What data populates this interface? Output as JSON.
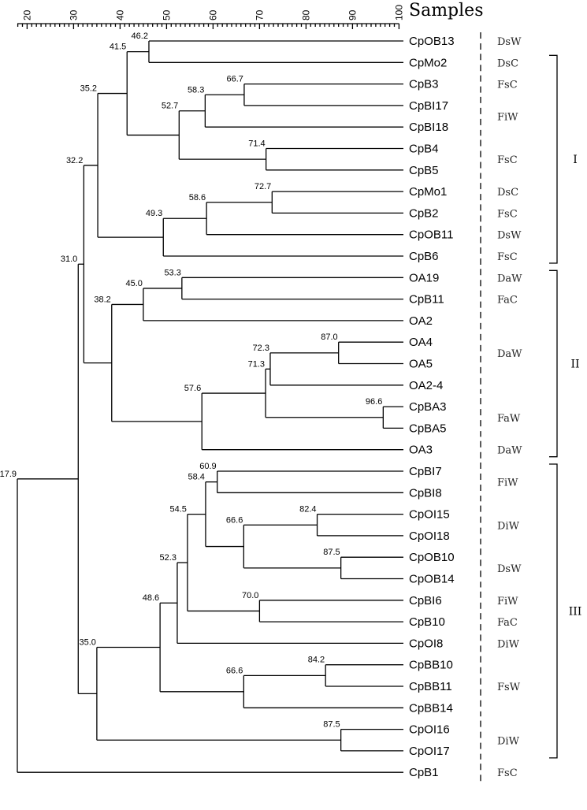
{
  "scale": {
    "title": "Samples",
    "ticks": [
      "20",
      "30",
      "40",
      "50",
      "60",
      "70",
      "80",
      "90",
      "100"
    ]
  },
  "samples": [
    "CpOB13",
    "CpMo2",
    "CpB3",
    "CpBI17",
    "CpBI18",
    "CpB4",
    "CpB5",
    "CpMo1",
    "CpB2",
    "CpOB11",
    "CpB6",
    "OA19",
    "CpB11",
    "OA2",
    "OA4",
    "OA5",
    "OA2-4",
    "CpBA3",
    "CpBA5",
    "OA3",
    "CpBI7",
    "CpBI8",
    "CpOI15",
    "CpOI18",
    "CpOB10",
    "CpOB14",
    "CpBI6",
    "CpB10",
    "CpOI8",
    "CpBB10",
    "CpBB11",
    "CpBB14",
    "CpOI16",
    "CpOI17",
    "CpB1"
  ],
  "node_labels": [
    "46.2",
    "41.5",
    "66.7",
    "58.3",
    "52.7",
    "71.4",
    "35.2",
    "72.7",
    "58.6",
    "49.3",
    "32.2",
    "53.3",
    "45.0",
    "87.0",
    "72.3",
    "38.2",
    "71.3",
    "96.6",
    "57.6",
    "31.0",
    "60.9",
    "58.4",
    "82.4",
    "66.6",
    "87.5",
    "54.5",
    "70.0",
    "52.3",
    "48.6",
    "84.2",
    "66.6",
    "35.0",
    "87.5",
    "17.9"
  ],
  "groups": [
    "DsW",
    "DsC",
    "FsC",
    "FiW",
    "FsC",
    "DsC",
    "FsC",
    "DsW",
    "FsC",
    "DaW",
    "FaC",
    "DaW",
    "FaW",
    "DaW",
    "FiW",
    "DiW",
    "DsW",
    "FiW",
    "FaC",
    "DiW",
    "FsW",
    "DiW",
    "FsC"
  ],
  "clusters": [
    "I",
    "II",
    "III"
  ]
}
